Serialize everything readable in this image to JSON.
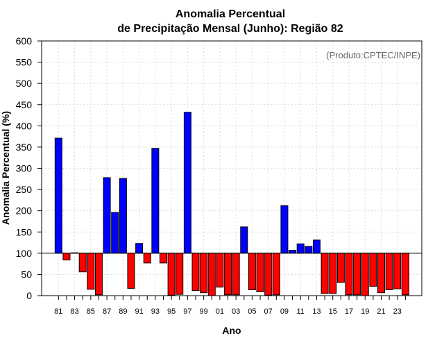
{
  "chart_data": {
    "type": "bar",
    "title_line1": "Anomalia Percentual",
    "title_line2": "de Precipitação Mensal (Junho): Região 82",
    "xlabel": "Ano",
    "ylabel": "Anomalia Percentual (%)",
    "source_note": "(Produto:CPTEC/INPE)",
    "ylim": [
      0,
      600
    ],
    "yticks": [
      "0",
      "50",
      "100",
      "150",
      "200",
      "250",
      "300",
      "350",
      "400",
      "450",
      "500",
      "550",
      "600"
    ],
    "baseline": 100,
    "categories": [
      "81",
      "82",
      "83",
      "84",
      "85",
      "86",
      "87",
      "88",
      "89",
      "90",
      "91",
      "92",
      "93",
      "94",
      "95",
      "96",
      "97",
      "98",
      "99",
      "00",
      "01",
      "02",
      "03",
      "04",
      "05",
      "06",
      "07",
      "08",
      "09",
      "10",
      "11",
      "12",
      "13",
      "14",
      "15",
      "16",
      "17",
      "18",
      "19",
      "20",
      "21",
      "22",
      "23",
      "24"
    ],
    "xtick_labels": [
      "81",
      "83",
      "85",
      "87",
      "89",
      "91",
      "93",
      "95",
      "97",
      "99",
      "01",
      "03",
      "05",
      "07",
      "09",
      "11",
      "13",
      "15",
      "17",
      "19",
      "21",
      "23"
    ],
    "values": [
      371,
      84,
      101,
      56,
      15,
      2,
      278,
      196,
      276,
      17,
      123,
      77,
      347,
      77,
      1,
      3,
      432,
      12,
      7,
      0,
      20,
      2,
      2,
      162,
      14,
      9,
      1,
      2,
      212,
      107,
      122,
      116,
      131,
      5,
      5,
      31,
      2,
      2,
      0,
      22,
      7,
      14,
      16,
      2
    ],
    "colors": {
      "positive": "#0000ff",
      "negative": "#ff0000"
    }
  }
}
